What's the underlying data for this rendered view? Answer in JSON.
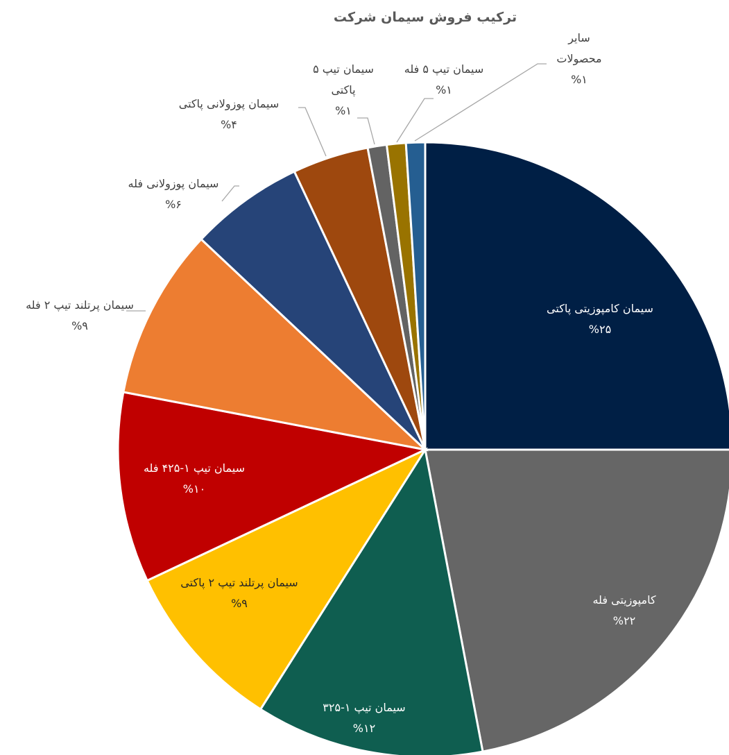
{
  "chart_data": {
    "type": "pie",
    "title": "ترکیب فروش سیمان شرکت",
    "categories": [
      "سیمان کامپوزیتی پاکتی",
      "کامپوزیتی فله",
      "سیمان تیپ ۱-۳۲۵",
      "سیمان پرتلند تیپ ۲ پاکتی",
      "سیمان تیپ ۱-۴۲۵ فله",
      "سیمان پرتلند تیپ ۲ فله",
      "سیمان پوزولانی فله",
      "سیمان پوزولانی پاکتی",
      "سیمان تیپ ۵ پاکتی",
      "سیمان تیپ ۵ فله",
      "سایر محصولات"
    ],
    "values": [
      25,
      22,
      12,
      9,
      10,
      9,
      6,
      4,
      1,
      1,
      1
    ],
    "value_labels": [
      "%۲۵",
      "%۲۲",
      "%۱۲",
      "%۹",
      "%۱۰",
      "%۹",
      "%۶",
      "%۴",
      "%۱",
      "%۱",
      "%۱"
    ],
    "colors": [
      "#001f45",
      "#666666",
      "#0f5e50",
      "#ffc000",
      "#c00000",
      "#ed7d31",
      "#264478",
      "#9e480e",
      "#636363",
      "#997300",
      "#255e91"
    ]
  }
}
